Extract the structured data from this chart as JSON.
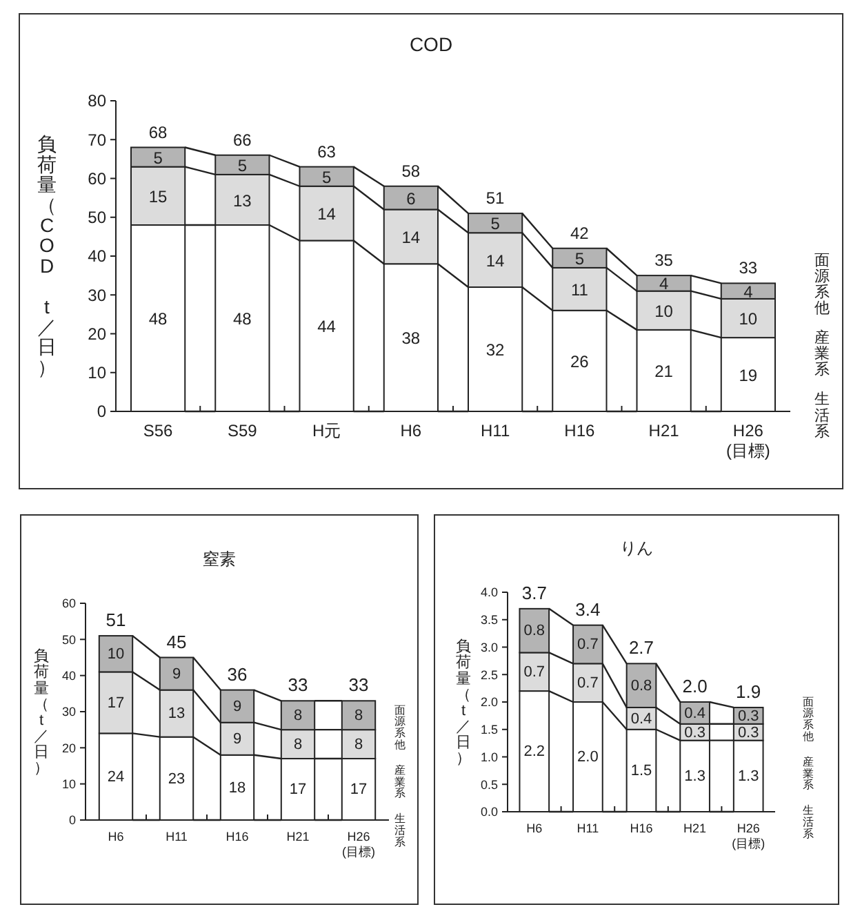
{
  "chart_data": [
    {
      "type": "bar",
      "stacked": true,
      "title": "COD",
      "ylabel": "負荷量（COD t／日）",
      "categories": [
        "S56",
        "S59",
        "H元",
        "H6",
        "H11",
        "H16",
        "H21",
        "H26 (目標)"
      ],
      "ylim": [
        0,
        80
      ],
      "yticks": [
        0,
        10,
        20,
        30,
        40,
        50,
        60,
        70,
        80
      ],
      "series": [
        {
          "name": "生活系",
          "color": "#ffffff",
          "values": [
            48,
            48,
            44,
            38,
            32,
            26,
            21,
            19
          ],
          "value_labels": [
            "48",
            "48",
            "44",
            "38",
            "32",
            "26",
            "21",
            "19"
          ]
        },
        {
          "name": "産業系",
          "color": "#dcdcdc",
          "values": [
            15,
            13,
            14,
            14,
            14,
            11,
            10,
            10
          ],
          "value_labels": [
            "15",
            "13",
            "14",
            "14",
            "14",
            "11",
            "10",
            "10"
          ]
        },
        {
          "name": "面源系他",
          "color": "#b4b4b4",
          "values": [
            5,
            5,
            5,
            6,
            5,
            5,
            4,
            4
          ],
          "value_labels": [
            "5",
            "5",
            "5",
            "6",
            "5",
            "5",
            "4",
            "4"
          ]
        }
      ],
      "totals": [
        "68",
        "66",
        "63",
        "58",
        "51",
        "42",
        "35",
        "33"
      ]
    },
    {
      "type": "bar",
      "stacked": true,
      "title": "窒素",
      "ylabel": "負荷量（t／日）",
      "categories": [
        "H6",
        "H11",
        "H16",
        "H21",
        "H26 (目標)"
      ],
      "ylim": [
        0,
        60
      ],
      "yticks": [
        0,
        10,
        20,
        30,
        40,
        50,
        60
      ],
      "series": [
        {
          "name": "生活系",
          "color": "#ffffff",
          "values": [
            24,
            23,
            18,
            17,
            17
          ],
          "value_labels": [
            "24",
            "23",
            "18",
            "17",
            "17"
          ]
        },
        {
          "name": "産業系",
          "color": "#dcdcdc",
          "values": [
            17,
            13,
            9,
            8,
            8
          ],
          "value_labels": [
            "17",
            "13",
            "9",
            "8",
            "8"
          ]
        },
        {
          "name": "面源系他",
          "color": "#b4b4b4",
          "values": [
            10,
            9,
            9,
            8,
            8
          ],
          "value_labels": [
            "10",
            "9",
            "9",
            "8",
            "8"
          ]
        }
      ],
      "totals": [
        "51",
        "45",
        "36",
        "33",
        "33"
      ]
    },
    {
      "type": "bar",
      "stacked": true,
      "title": "りん",
      "ylabel": "負荷量（t／日）",
      "categories": [
        "H6",
        "H11",
        "H16",
        "H21",
        "H26 (目標)"
      ],
      "ylim": [
        0,
        4
      ],
      "yticks": [
        {
          "value": 0,
          "label": "0.0"
        },
        {
          "value": 0.5,
          "label": "0.5"
        },
        {
          "value": 1,
          "label": "1.0"
        },
        {
          "value": 1.5,
          "label": "1.5"
        },
        {
          "value": 2,
          "label": "2.0"
        },
        {
          "value": 2.5,
          "label": "2.5"
        },
        {
          "value": 3,
          "label": "3.0"
        },
        {
          "value": 3.5,
          "label": "3.5"
        },
        {
          "value": 4,
          "label": "4.0"
        }
      ],
      "series": [
        {
          "name": "生活系",
          "color": "#ffffff",
          "values": [
            2.2,
            2.0,
            1.5,
            1.3,
            1.3
          ],
          "value_labels": [
            "2.2",
            "2.0",
            "1.5",
            "1.3",
            "1.3"
          ]
        },
        {
          "name": "産業系",
          "color": "#dcdcdc",
          "values": [
            0.7,
            0.7,
            0.4,
            0.3,
            0.3
          ],
          "value_labels": [
            "0.7",
            "0.7",
            "0.4",
            "0.3",
            "0.3"
          ]
        },
        {
          "name": "面源系他",
          "color": "#b4b4b4",
          "values": [
            0.8,
            0.7,
            0.8,
            0.4,
            0.3
          ],
          "value_labels": [
            "0.8",
            "0.7",
            "0.8",
            "0.4",
            "0.3"
          ]
        }
      ],
      "totals": [
        "3.7",
        "3.4",
        "2.7",
        "2.0",
        "1.9"
      ]
    }
  ]
}
